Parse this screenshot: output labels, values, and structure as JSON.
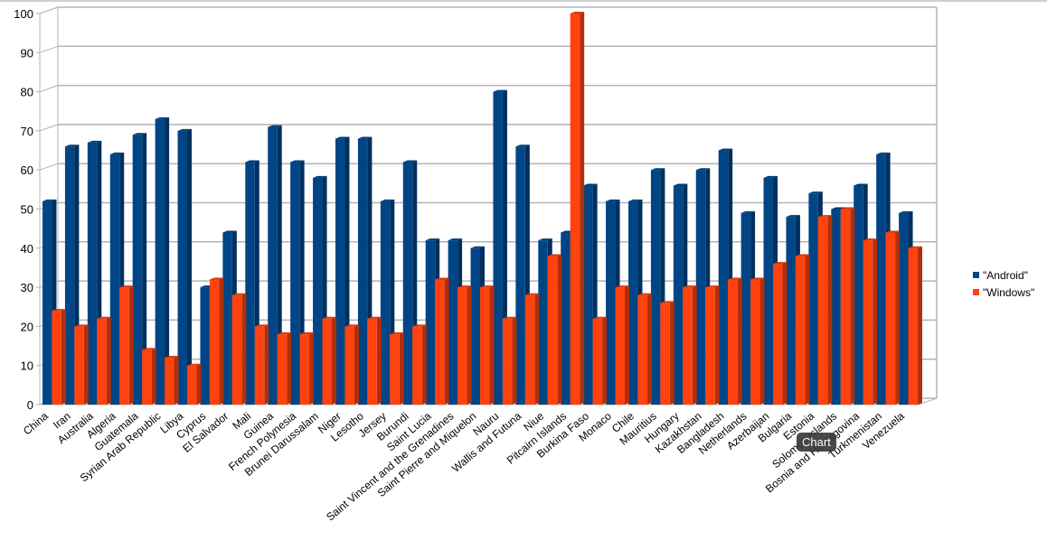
{
  "chart_data": {
    "type": "bar",
    "title": "",
    "xlabel": "",
    "ylabel": "",
    "ylim": [
      0,
      100
    ],
    "yticks": [
      0,
      10,
      20,
      30,
      40,
      50,
      60,
      70,
      80,
      90,
      100
    ],
    "legend_position": "right",
    "categories": [
      "China",
      "Iran",
      "Australia",
      "Algeria",
      "Guatemala",
      "Syrian Arab Republic",
      "Libya",
      "Cyprus",
      "El Salvador",
      "Mali",
      "Guinea",
      "French Polynesia",
      "Brunei Darussalam",
      "Niger",
      "Lesotho",
      "Jersey",
      "Burundi",
      "Saint Lucia",
      "Saint Vincent and the Grenadines",
      "Saint Pierre and Miquelon",
      "Nauru",
      "Wallis and Futuna",
      "Niue",
      "Pitcairn Islands",
      "Burkina Faso",
      "Monaco",
      "Chile",
      "Mauritius",
      "Hungary",
      "Kazakhstan",
      "Bangladesh",
      "Netherlands",
      "Azerbaijan",
      "Bulgaria",
      "Estonia",
      "Solomon Islands",
      "Bosnia and Herzegovina",
      "Turkmenistan",
      "Venezuela"
    ],
    "series": [
      {
        "name": "\"Android\"",
        "color": "#004586",
        "values": [
          52,
          66,
          67,
          64,
          69,
          73,
          70,
          30,
          44,
          62,
          71,
          62,
          58,
          68,
          68,
          52,
          62,
          42,
          42,
          40,
          80,
          66,
          42,
          44,
          56,
          52,
          52,
          60,
          56,
          60,
          65,
          49,
          58,
          48,
          54,
          50,
          56,
          64,
          49
        ]
      },
      {
        "name": "\"Windows\"",
        "color": "#ff420e",
        "values": [
          24,
          20,
          22,
          30,
          14,
          12,
          10,
          32,
          28,
          20,
          18,
          18,
          22,
          20,
          22,
          18,
          20,
          32,
          30,
          30,
          22,
          28,
          38,
          100,
          22,
          30,
          28,
          26,
          30,
          30,
          32,
          32,
          36,
          38,
          48,
          50,
          42,
          44,
          40
        ]
      }
    ]
  },
  "legend": {
    "android_label": "\"Android\"",
    "windows_label": "\"Windows\""
  },
  "tooltip": {
    "text": "Chart"
  }
}
